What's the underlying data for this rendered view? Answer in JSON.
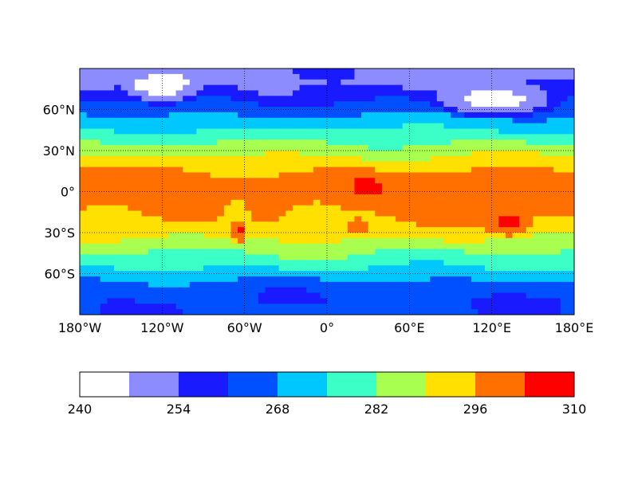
{
  "chart_data": {
    "type": "heatmap",
    "title": "",
    "xlabel": "",
    "ylabel": "",
    "xlim": [
      -180,
      180
    ],
    "ylim": [
      -90,
      90
    ],
    "grid": true,
    "x_ticks": [
      {
        "value": -180,
        "label": "180°W"
      },
      {
        "value": -120,
        "label": "120°W"
      },
      {
        "value": -60,
        "label": "60°W"
      },
      {
        "value": 0,
        "label": "0°"
      },
      {
        "value": 60,
        "label": "60°E"
      },
      {
        "value": 120,
        "label": "120°E"
      },
      {
        "value": 180,
        "label": "180°E"
      }
    ],
    "y_ticks": [
      {
        "value": 60,
        "label": "60°N"
      },
      {
        "value": 30,
        "label": "30°N"
      },
      {
        "value": 0,
        "label": "0°"
      },
      {
        "value": -30,
        "label": "30°S"
      },
      {
        "value": -60,
        "label": "60°S"
      }
    ],
    "levels": [
      240,
      247,
      254,
      261,
      268,
      275,
      282,
      289,
      296,
      303,
      310
    ],
    "colors": [
      "#ffffff",
      "#8c8cff",
      "#1a1aff",
      "#0050ff",
      "#00c8ff",
      "#3cffc8",
      "#a8ff50",
      "#ffe000",
      "#ff7000",
      "#ff0000"
    ],
    "colorbar": {
      "orientation": "horizontal",
      "ticks": [
        {
          "value": 240,
          "label": "240"
        },
        {
          "value": 254,
          "label": "254"
        },
        {
          "value": 268,
          "label": "268"
        },
        {
          "value": 282,
          "label": "282"
        },
        {
          "value": 296,
          "label": "296"
        },
        {
          "value": 310,
          "label": "310"
        }
      ]
    },
    "latitude_band_values": [
      {
        "lat": 80,
        "value": 252
      },
      {
        "lat": 70,
        "value": 259
      },
      {
        "lat": 60,
        "value": 265
      },
      {
        "lat": 50,
        "value": 272
      },
      {
        "lat": 40,
        "value": 279
      },
      {
        "lat": 30,
        "value": 286
      },
      {
        "lat": 20,
        "value": 293
      },
      {
        "lat": 10,
        "value": 299
      },
      {
        "lat": 0,
        "value": 300
      },
      {
        "lat": -10,
        "value": 299
      },
      {
        "lat": -20,
        "value": 296
      },
      {
        "lat": -30,
        "value": 292
      },
      {
        "lat": -40,
        "value": 285
      },
      {
        "lat": -50,
        "value": 279
      },
      {
        "lat": -60,
        "value": 272
      },
      {
        "lat": -70,
        "value": 264
      },
      {
        "lat": -80,
        "value": 262
      }
    ],
    "anomalies": [
      {
        "region": "north-america-cold",
        "lon": [
          -145,
          -95
        ],
        "lat": [
          65,
          88
        ],
        "value": 243
      },
      {
        "region": "siberia-cold",
        "lon": [
          80,
          165
        ],
        "lat": [
          55,
          78
        ],
        "value": 244
      },
      {
        "region": "greenland-cold",
        "lon": [
          -60,
          -20
        ],
        "lat": [
          70,
          88
        ],
        "value": 250
      },
      {
        "region": "south-america-warm",
        "lon": [
          -78,
          -55
        ],
        "lat": [
          -40,
          -5
        ],
        "value": 291
      },
      {
        "region": "south-atlantic",
        "lon": [
          -30,
          15
        ],
        "lat": [
          -38,
          -8
        ],
        "value": 292
      },
      {
        "region": "africa-hot",
        "lon": [
          18,
          40
        ],
        "lat": [
          -5,
          12
        ],
        "value": 304
      },
      {
        "region": "southern-africa-hot",
        "lon": [
          15,
          28
        ],
        "lat": [
          -32,
          -20
        ],
        "value": 304
      },
      {
        "region": "australia-hot",
        "lon": [
          118,
          148
        ],
        "lat": [
          -32,
          -15
        ],
        "value": 305
      },
      {
        "region": "south-america-hot",
        "lon": [
          -70,
          -58
        ],
        "lat": [
          -38,
          -22
        ],
        "value": 304
      }
    ]
  }
}
